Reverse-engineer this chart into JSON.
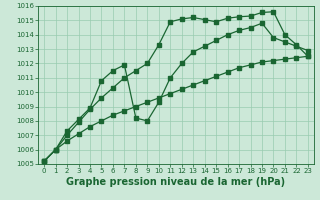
{
  "xlabel": "Graphe pression niveau de la mer (hPa)",
  "xlim": [
    -0.5,
    23.5
  ],
  "ylim": [
    1005,
    1016
  ],
  "yticks": [
    1005,
    1006,
    1007,
    1008,
    1009,
    1010,
    1011,
    1012,
    1013,
    1014,
    1015,
    1016
  ],
  "xticks": [
    0,
    1,
    2,
    3,
    4,
    5,
    6,
    7,
    8,
    9,
    10,
    11,
    12,
    13,
    14,
    15,
    16,
    17,
    18,
    19,
    20,
    21,
    22,
    23
  ],
  "bg_color": "#cce8d8",
  "grid_color": "#99ccb0",
  "line_color": "#1a6632",
  "line1": [
    1005.2,
    1006.0,
    1006.6,
    1007.1,
    1007.6,
    1008.0,
    1008.4,
    1008.7,
    1009.0,
    1009.3,
    1009.6,
    1009.9,
    1010.2,
    1010.5,
    1010.8,
    1011.1,
    1011.4,
    1011.7,
    1011.9,
    1012.1,
    1012.2,
    1012.3,
    1012.4,
    1012.5
  ],
  "line2": [
    1005.2,
    1006.0,
    1007.0,
    1007.9,
    1008.8,
    1009.6,
    1010.3,
    1011.0,
    1011.5,
    1012.0,
    1013.3,
    1014.9,
    1015.1,
    1015.2,
    1015.05,
    1014.9,
    1015.15,
    1015.25,
    1015.3,
    1015.55,
    1015.6,
    1014.0,
    1013.3,
    1012.5
  ],
  "line3": [
    1005.2,
    1006.0,
    1007.3,
    1008.1,
    1008.9,
    1010.8,
    1011.5,
    1011.9,
    1008.2,
    1008.0,
    1009.3,
    1011.0,
    1012.0,
    1012.8,
    1013.2,
    1013.6,
    1014.0,
    1014.3,
    1014.5,
    1014.8,
    1013.8,
    1013.5,
    1013.2,
    1012.9
  ],
  "fontsize_label": 7,
  "fontsize_tick": 5,
  "marker": "s",
  "markersize": 2.2,
  "linewidth": 0.9
}
